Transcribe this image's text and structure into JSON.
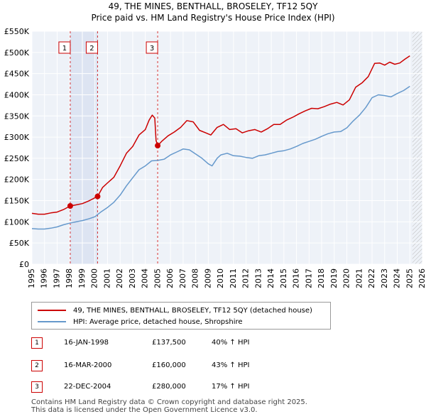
{
  "title": "49, THE MINES, BENTHALL, BROSELEY, TF12 5QY",
  "subtitle": "Price paid vs. HM Land Registry's House Price Index (HPI)",
  "chart_data": {
    "type": "line",
    "xlim": [
      1995,
      2026
    ],
    "ylim": [
      0,
      550000
    ],
    "y_ticks": [
      0,
      50000,
      100000,
      150000,
      200000,
      250000,
      300000,
      350000,
      400000,
      450000,
      500000,
      550000
    ],
    "y_tick_labels": [
      "£0",
      "£50K",
      "£100K",
      "£150K",
      "£200K",
      "£250K",
      "£300K",
      "£350K",
      "£400K",
      "£450K",
      "£500K",
      "£550K"
    ],
    "x_ticks": [
      1995,
      1996,
      1997,
      1998,
      1999,
      2000,
      2001,
      2002,
      2003,
      2004,
      2005,
      2006,
      2007,
      2008,
      2009,
      2010,
      2011,
      2012,
      2013,
      2014,
      2015,
      2016,
      2017,
      2018,
      2019,
      2020,
      2021,
      2022,
      2023,
      2024,
      2025,
      2026
    ],
    "grid": true,
    "shaded_ranges": [
      [
        1998.04,
        2000.21
      ]
    ],
    "future_hatch_from": 2025.2,
    "series": [
      {
        "name": "49, THE MINES, BENTHALL, BROSELEY, TF12 5QY (detached house)",
        "color": "#cc0000",
        "x": [
          1995,
          1995.5,
          1996,
          1996.5,
          1997,
          1997.5,
          1998.04,
          1998.5,
          1999,
          1999.5,
          2000.21,
          2000.6,
          2001,
          2001.5,
          2002,
          2002.5,
          2003,
          2003.5,
          2004,
          2004.3,
          2004.55,
          2004.75,
          2004.85,
          2004.98,
          2005.3,
          2005.8,
          2006.3,
          2006.8,
          2007.3,
          2007.8,
          2008.3,
          2008.8,
          2009.2,
          2009.7,
          2010.2,
          2010.7,
          2011.2,
          2011.7,
          2012.2,
          2012.7,
          2013.2,
          2013.7,
          2014.2,
          2014.7,
          2015.2,
          2015.7,
          2016.2,
          2016.7,
          2017.2,
          2017.7,
          2018.2,
          2018.7,
          2019.2,
          2019.7,
          2020.2,
          2020.7,
          2021.2,
          2021.7,
          2022.2,
          2022.6,
          2023.0,
          2023.4,
          2023.8,
          2024.2,
          2024.6,
          2025.0
        ],
        "values": [
          120000,
          118000,
          118000,
          121000,
          123000,
          129000,
          137500,
          140000,
          143000,
          149000,
          160000,
          181000,
          192000,
          205000,
          232000,
          262000,
          278000,
          305000,
          318000,
          340000,
          352000,
          345000,
          292000,
          280000,
          290000,
          303000,
          312000,
          323000,
          339000,
          336000,
          316000,
          310000,
          305000,
          323000,
          330000,
          318000,
          320000,
          310000,
          315000,
          318000,
          312000,
          320000,
          330000,
          330000,
          340000,
          347000,
          355000,
          362000,
          368000,
          367000,
          372000,
          378000,
          382000,
          376000,
          388000,
          418000,
          428000,
          443000,
          474000,
          475000,
          470000,
          477000,
          472000,
          475000,
          484000,
          492000
        ]
      },
      {
        "name": "HPI: Average price, detached house, Shropshire",
        "color": "#6699cc",
        "x": [
          1995,
          1995.5,
          1996,
          1996.5,
          1997,
          1997.5,
          1998,
          1998.5,
          1999,
          1999.5,
          2000,
          2000.5,
          2001,
          2001.5,
          2002,
          2002.5,
          2003,
          2003.5,
          2004,
          2004.5,
          2005,
          2005.5,
          2006,
          2006.5,
          2007,
          2007.5,
          2008,
          2008.5,
          2009,
          2009.3,
          2009.7,
          2010,
          2010.5,
          2011,
          2011.5,
          2012,
          2012.5,
          2013,
          2013.5,
          2014,
          2014.5,
          2015,
          2015.5,
          2016,
          2016.5,
          2017,
          2017.5,
          2018,
          2018.5,
          2019,
          2019.5,
          2020,
          2020.5,
          2021,
          2021.5,
          2022,
          2022.5,
          2023,
          2023.5,
          2024,
          2024.5,
          2025.0
        ],
        "values": [
          84000,
          83000,
          83000,
          85000,
          88000,
          93000,
          97000,
          100000,
          103000,
          107000,
          112000,
          124000,
          134000,
          146000,
          163000,
          185000,
          204000,
          223000,
          232000,
          244000,
          245000,
          248000,
          258000,
          265000,
          272000,
          270000,
          260000,
          250000,
          237000,
          232000,
          250000,
          258000,
          262000,
          256000,
          255000,
          252000,
          250000,
          256000,
          258000,
          262000,
          266000,
          268000,
          272000,
          278000,
          285000,
          290000,
          295000,
          302000,
          308000,
          312000,
          313000,
          322000,
          338000,
          352000,
          370000,
          393000,
          400000,
          398000,
          395000,
          403000,
          410000,
          420000
        ]
      }
    ],
    "transactions": [
      {
        "label": "1",
        "x": 1998.04,
        "value": 137500
      },
      {
        "label": "2",
        "x": 2000.21,
        "value": 160000
      },
      {
        "label": "3",
        "x": 2004.98,
        "value": 280000
      }
    ]
  },
  "legend": {
    "red_label": "49, THE MINES, BENTHALL, BROSELEY, TF12 5QY (detached house)",
    "blue_label": "HPI: Average price, detached house, Shropshire"
  },
  "table": [
    {
      "num": "1",
      "date": "16-JAN-1998",
      "price": "£137,500",
      "hpi": "40% ↑ HPI"
    },
    {
      "num": "2",
      "date": "16-MAR-2000",
      "price": "£160,000",
      "hpi": "43% ↑ HPI"
    },
    {
      "num": "3",
      "date": "22-DEC-2004",
      "price": "£280,000",
      "hpi": "17% ↑ HPI"
    }
  ],
  "footer": {
    "line1": "Contains HM Land Registry data © Crown copyright and database right 2025.",
    "line2": "This data is licensed under the Open Government Licence v3.0."
  }
}
